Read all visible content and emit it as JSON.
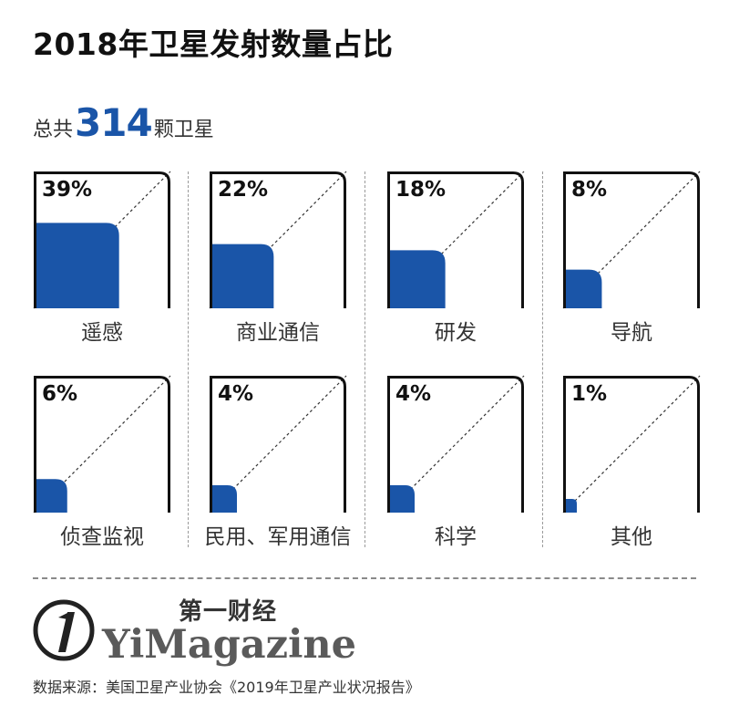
{
  "title": "2018年卫星发射数量占比",
  "total": {
    "prefix": "总共",
    "value": "314",
    "suffix": "颗卫星"
  },
  "chart_data": {
    "type": "bar",
    "title": "2018年卫星发射数量占比",
    "unit": "%",
    "categories": [
      "遥感",
      "商业通信",
      "研发",
      "导航",
      "侦查监视",
      "民用、军用通信",
      "科学",
      "其他"
    ],
    "values": [
      39,
      22,
      18,
      8,
      6,
      4,
      4,
      1
    ],
    "labels": [
      "39%",
      "22%",
      "18%",
      "8%",
      "6%",
      "4%",
      "4%",
      "1%"
    ],
    "color": "#1a55a8"
  },
  "logo": {
    "mark": "1",
    "cn": "第一财经",
    "en": "YiMagazine"
  },
  "source": "数据来源：美国卫星产业协会《2019年卫星产业状况报告》"
}
